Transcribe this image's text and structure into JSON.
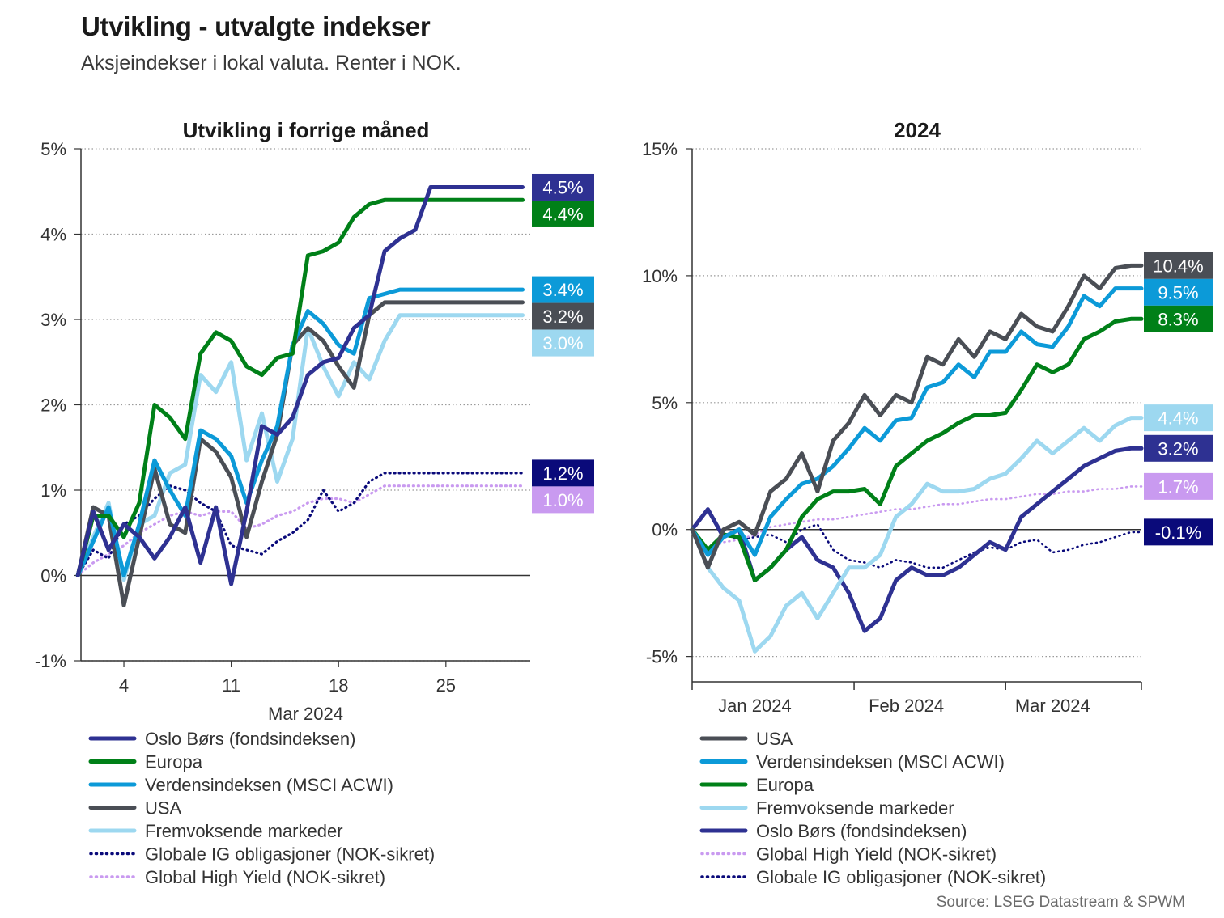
{
  "title": "Utvikling - utvalgte indekser",
  "subtitle": "Aksjeindekser i lokal valuta. Renter i NOK.",
  "source": "Source: LSEG Datastream & SPWM",
  "colors": {
    "oslo": "#2e3192",
    "europa": "#008018",
    "msci": "#0c9ad8",
    "usa": "#4a4e55",
    "em": "#9dd8f0",
    "ig": "#0a0a7a",
    "hy": "#c99af0"
  },
  "chart_data": [
    {
      "type": "line",
      "title": "Utvikling i forrige måned",
      "xlabel": "Mar 2024",
      "ylabel": "",
      "x_ticks": [
        4,
        11,
        18,
        25
      ],
      "x_tick_labels": [
        "4",
        "11",
        "18",
        "25"
      ],
      "xlim": [
        1.2,
        30.5
      ],
      "ylim": [
        -1,
        5
      ],
      "y_ticks": [
        -1,
        0,
        1,
        2,
        3,
        4,
        5
      ],
      "y_tick_labels": [
        "-1%",
        "0%",
        "1%",
        "2%",
        "3%",
        "4%",
        "5%"
      ],
      "grid": "horizontal dotted",
      "x": [
        1,
        2,
        3,
        4,
        5,
        6,
        7,
        8,
        9,
        10,
        11,
        12,
        13,
        14,
        15,
        16,
        17,
        18,
        19,
        20,
        21,
        22,
        23,
        24,
        25,
        26,
        27,
        28,
        29,
        30
      ],
      "series": [
        {
          "name": "Oslo Børs (fondsindeksen)",
          "color": "oslo",
          "style": "solid",
          "end_label": "4.5%",
          "values": [
            0.0,
            0.75,
            0.3,
            0.6,
            0.45,
            0.2,
            0.45,
            0.8,
            0.15,
            0.8,
            -0.1,
            0.75,
            1.75,
            1.65,
            1.85,
            2.35,
            2.5,
            2.55,
            2.9,
            3.05,
            3.8,
            3.95,
            4.05,
            4.55,
            4.55,
            4.55,
            4.55,
            4.55,
            4.55,
            4.55
          ]
        },
        {
          "name": "Europa",
          "color": "europa",
          "style": "solid",
          "end_label": "4.4%",
          "values": [
            0.0,
            0.7,
            0.7,
            0.45,
            0.85,
            2.0,
            1.85,
            1.6,
            2.6,
            2.85,
            2.75,
            2.45,
            2.35,
            2.55,
            2.6,
            3.75,
            3.8,
            3.9,
            4.2,
            4.35,
            4.4,
            4.4,
            4.4,
            4.4,
            4.4,
            4.4,
            4.4,
            4.4,
            4.4,
            4.4
          ]
        },
        {
          "name": "Verdensindeksen (MSCI ACWI)",
          "color": "msci",
          "style": "solid",
          "end_label": "3.4%",
          "values": [
            0.0,
            0.4,
            0.8,
            0.0,
            0.6,
            1.35,
            1.0,
            0.7,
            1.7,
            1.6,
            1.4,
            0.85,
            1.35,
            1.75,
            2.7,
            3.1,
            2.95,
            2.7,
            2.6,
            3.25,
            3.3,
            3.35,
            3.35,
            3.35,
            3.35,
            3.35,
            3.35,
            3.35,
            3.35,
            3.35
          ]
        },
        {
          "name": "USA",
          "color": "usa",
          "style": "solid",
          "end_label": "3.2%",
          "values": [
            0.0,
            0.8,
            0.7,
            -0.35,
            0.45,
            1.25,
            0.6,
            0.5,
            1.6,
            1.45,
            1.15,
            0.45,
            1.1,
            1.65,
            2.7,
            2.9,
            2.75,
            2.45,
            2.2,
            3.05,
            3.2,
            3.2,
            3.2,
            3.2,
            3.2,
            3.2,
            3.2,
            3.2,
            3.2,
            3.2
          ]
        },
        {
          "name": "Fremvoksende markeder",
          "color": "em",
          "style": "solid",
          "end_label": "3.0%",
          "values": [
            0.0,
            0.45,
            0.85,
            -0.05,
            0.6,
            0.7,
            1.2,
            1.3,
            2.35,
            2.15,
            2.5,
            1.35,
            1.9,
            1.1,
            1.6,
            2.9,
            2.45,
            2.1,
            2.5,
            2.3,
            2.75,
            3.05,
            3.05,
            3.05,
            3.05,
            3.05,
            3.05,
            3.05,
            3.05,
            3.05
          ]
        },
        {
          "name": "Globale IG obligasjoner (NOK-sikret)",
          "color": "ig",
          "style": "dotted",
          "end_label": "1.2%",
          "values": [
            0.0,
            0.3,
            0.2,
            0.6,
            0.7,
            0.9,
            1.05,
            1.0,
            0.85,
            0.75,
            0.35,
            0.3,
            0.25,
            0.4,
            0.5,
            0.65,
            1.0,
            0.75,
            0.85,
            1.1,
            1.2,
            1.2,
            1.2,
            1.2,
            1.2,
            1.2,
            1.2,
            1.2,
            1.2,
            1.2
          ]
        },
        {
          "name": "Global High Yield (NOK-sikret)",
          "color": "hy",
          "style": "dotted",
          "end_label": "1.0%",
          "values": [
            0.0,
            0.15,
            0.25,
            0.35,
            0.5,
            0.6,
            0.7,
            0.75,
            0.7,
            0.75,
            0.75,
            0.55,
            0.6,
            0.7,
            0.75,
            0.85,
            0.9,
            0.9,
            0.85,
            0.95,
            1.05,
            1.05,
            1.05,
            1.05,
            1.05,
            1.05,
            1.05,
            1.05,
            1.05,
            1.05
          ]
        }
      ]
    },
    {
      "type": "line",
      "title": "2024",
      "xlabel": "",
      "ylabel": "",
      "x_ticks": [
        12,
        41,
        69
      ],
      "x_tick_labels": [
        "Jan 2024",
        "Feb 2024",
        "Mar 2024"
      ],
      "x_boundaries": [
        0,
        31,
        60,
        86
      ],
      "xlim": [
        0,
        86
      ],
      "ylim": [
        -6,
        15
      ],
      "y_ticks": [
        -5,
        0,
        5,
        10,
        15
      ],
      "y_tick_labels": [
        "-5%",
        "0%",
        "5%",
        "10%",
        "15%"
      ],
      "grid": "horizontal dotted",
      "x": [
        0,
        3,
        6,
        9,
        12,
        15,
        18,
        21,
        24,
        27,
        30,
        33,
        36,
        39,
        42,
        45,
        48,
        51,
        54,
        57,
        60,
        63,
        66,
        69,
        72,
        75,
        78,
        81,
        84,
        86
      ],
      "series": [
        {
          "name": "USA",
          "color": "usa",
          "style": "solid",
          "end_label": "10.4%",
          "values": [
            0.0,
            -1.5,
            0.0,
            0.3,
            -0.2,
            1.5,
            2.0,
            3.0,
            1.5,
            3.5,
            4.2,
            5.3,
            4.5,
            5.3,
            5.0,
            6.8,
            6.5,
            7.5,
            6.8,
            7.8,
            7.5,
            8.5,
            8.0,
            7.8,
            8.8,
            10.0,
            9.5,
            10.3,
            10.4,
            10.4
          ]
        },
        {
          "name": "Verdensindeksen (MSCI ACWI)",
          "color": "msci",
          "style": "solid",
          "end_label": "9.5%",
          "values": [
            0.0,
            -1.0,
            -0.3,
            0.0,
            -1.0,
            0.5,
            1.2,
            1.8,
            2.0,
            2.5,
            3.2,
            4.0,
            3.5,
            4.3,
            4.4,
            5.6,
            5.8,
            6.5,
            6.0,
            7.0,
            7.0,
            7.8,
            7.3,
            7.2,
            8.0,
            9.2,
            8.8,
            9.5,
            9.5,
            9.5
          ]
        },
        {
          "name": "Europa",
          "color": "europa",
          "style": "solid",
          "end_label": "8.3%",
          "values": [
            0.0,
            -0.8,
            -0.2,
            -0.3,
            -2.0,
            -1.5,
            -0.8,
            0.5,
            1.2,
            1.5,
            1.5,
            1.6,
            1.0,
            2.5,
            3.0,
            3.5,
            3.8,
            4.2,
            4.5,
            4.5,
            4.6,
            5.5,
            6.5,
            6.2,
            6.5,
            7.5,
            7.8,
            8.2,
            8.3,
            8.3
          ]
        },
        {
          "name": "Fremvoksende markeder",
          "color": "em",
          "style": "solid",
          "end_label": "4.4%",
          "values": [
            0.0,
            -1.5,
            -2.3,
            -2.8,
            -4.8,
            -4.2,
            -3.0,
            -2.5,
            -3.5,
            -2.5,
            -1.5,
            -1.5,
            -1.0,
            0.5,
            1.0,
            1.8,
            1.5,
            1.5,
            1.6,
            2.0,
            2.2,
            2.8,
            3.5,
            3.0,
            3.5,
            4.0,
            3.5,
            4.1,
            4.4,
            4.4
          ]
        },
        {
          "name": "Oslo Børs (fondsindeksen)",
          "color": "oslo",
          "style": "solid",
          "end_label": "3.2%",
          "values": [
            0.0,
            0.8,
            -0.3,
            0.0,
            -2.0,
            -1.5,
            -0.8,
            -0.3,
            -1.2,
            -1.5,
            -2.5,
            -4.0,
            -3.5,
            -2.0,
            -1.5,
            -1.8,
            -1.8,
            -1.5,
            -1.0,
            -0.5,
            -0.8,
            0.5,
            1.0,
            1.5,
            2.0,
            2.5,
            2.8,
            3.1,
            3.2,
            3.2
          ]
        },
        {
          "name": "Global High Yield (NOK-sikret)",
          "color": "hy",
          "style": "dotted",
          "end_label": "1.7%",
          "values": [
            0.0,
            -0.8,
            -0.5,
            -0.4,
            -0.2,
            0.1,
            0.2,
            0.3,
            0.4,
            0.4,
            0.5,
            0.6,
            0.7,
            0.8,
            0.8,
            0.9,
            1.0,
            1.0,
            1.1,
            1.2,
            1.2,
            1.3,
            1.4,
            1.4,
            1.5,
            1.5,
            1.6,
            1.6,
            1.7,
            1.7
          ]
        },
        {
          "name": "Globale IG obligasjoner (NOK-sikret)",
          "color": "ig",
          "style": "dotted",
          "end_label": "-0.1%",
          "values": [
            0.0,
            -0.8,
            -0.2,
            -0.4,
            -0.3,
            -0.2,
            -0.5,
            0.0,
            0.2,
            -0.8,
            -1.2,
            -1.3,
            -1.5,
            -1.2,
            -1.3,
            -1.5,
            -1.5,
            -1.2,
            -0.9,
            -0.7,
            -0.8,
            -0.5,
            -0.4,
            -0.9,
            -0.8,
            -0.6,
            -0.5,
            -0.3,
            -0.1,
            -0.1
          ]
        }
      ]
    }
  ]
}
